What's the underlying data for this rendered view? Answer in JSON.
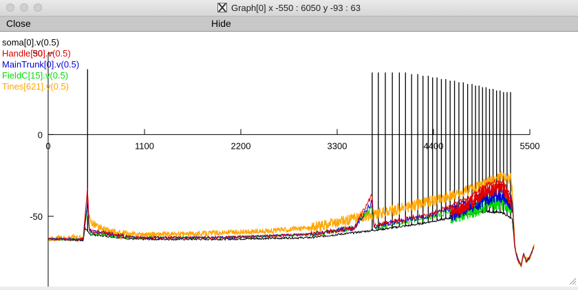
{
  "window": {
    "title": "Graph[0]  x -550 : 6050  y -93 : 63"
  },
  "menu": {
    "close_label": "Close",
    "hide_label": "Hide"
  },
  "legend": [
    {
      "label": "soma[0].v(0.5)",
      "color": "#000000"
    },
    {
      "label": "Handle[30].v(0.5)",
      "color": "#e00000"
    },
    {
      "label": "MainTrunk[0].v(0.5)",
      "color": "#0000dd"
    },
    {
      "label": "FieldC[15].v(0.5)",
      "color": "#00dd00"
    },
    {
      "label": "Tines[621].v(0.5)",
      "color": "#ffa500"
    }
  ],
  "chart_data": {
    "type": "line",
    "xlim": [
      -550,
      6050
    ],
    "ylim": [
      -93,
      63
    ],
    "x_ticks": [
      0,
      1100,
      2200,
      3300,
      4400,
      5500
    ],
    "x_tick_labels": [
      "0",
      "1100",
      "2200",
      "3300",
      "4400",
      "5500"
    ],
    "y_ticks": [
      0,
      -50
    ],
    "y_tick_labels": [
      "0",
      "-50"
    ],
    "y_top_tick_label": "50",
    "series": [
      {
        "name": "soma[0].v(0.5)",
        "color": "#000000",
        "baseline": [
          [
            0,
            -64
          ],
          [
            300,
            -64.5
          ],
          [
            400,
            -65
          ],
          [
            420,
            -57
          ],
          [
            470,
            -61
          ],
          [
            1000,
            -64
          ],
          [
            2000,
            -64
          ],
          [
            3000,
            -63
          ],
          [
            3500,
            -60
          ],
          [
            3800,
            -58
          ],
          [
            4200,
            -55
          ],
          [
            4600,
            -51
          ],
          [
            5000,
            -47
          ],
          [
            5200,
            -48
          ],
          [
            5300,
            -52
          ],
          [
            5330,
            -70
          ],
          [
            5360,
            -75
          ],
          [
            5400,
            -80
          ],
          [
            5430,
            -73
          ],
          [
            5460,
            -78
          ],
          [
            5500,
            -75
          ],
          [
            5550,
            -68
          ]
        ],
        "spikes": [
          [
            450,
            40
          ],
          [
            3700,
            38
          ],
          [
            3770,
            38
          ],
          [
            3850,
            38
          ],
          [
            3930,
            38
          ],
          [
            4010,
            38
          ],
          [
            4080,
            38
          ],
          [
            4150,
            37
          ],
          [
            4220,
            37
          ],
          [
            4280,
            36
          ],
          [
            4340,
            36
          ],
          [
            4390,
            35
          ],
          [
            4440,
            35
          ],
          [
            4490,
            34
          ],
          [
            4540,
            34
          ],
          [
            4590,
            33
          ],
          [
            4640,
            33
          ],
          [
            4690,
            32
          ],
          [
            4740,
            32
          ],
          [
            4790,
            31
          ],
          [
            4840,
            31
          ],
          [
            4880,
            30
          ],
          [
            4920,
            30
          ],
          [
            4960,
            29
          ],
          [
            5000,
            29
          ],
          [
            5040,
            28
          ],
          [
            5080,
            28
          ],
          [
            5120,
            27
          ],
          [
            5160,
            27
          ],
          [
            5200,
            26
          ],
          [
            5240,
            26
          ],
          [
            5280,
            26
          ]
        ]
      },
      {
        "name": "Handle[30].v(0.5)",
        "color": "#e00000",
        "points": [
          [
            0,
            -64
          ],
          [
            400,
            -64
          ],
          [
            450,
            -32
          ],
          [
            470,
            -59
          ],
          [
            1000,
            -63
          ],
          [
            2000,
            -63
          ],
          [
            3000,
            -61
          ],
          [
            3500,
            -57
          ],
          [
            3700,
            -37
          ],
          [
            3720,
            -55
          ],
          [
            4000,
            -53
          ],
          [
            4400,
            -48
          ],
          [
            4800,
            -39
          ],
          [
            5000,
            -31
          ],
          [
            5150,
            -28
          ],
          [
            5200,
            -29
          ],
          [
            5300,
            -40
          ],
          [
            5330,
            -70
          ],
          [
            5360,
            -76
          ],
          [
            5400,
            -80
          ],
          [
            5430,
            -73
          ],
          [
            5460,
            -78
          ],
          [
            5500,
            -75
          ],
          [
            5550,
            -68
          ]
        ]
      },
      {
        "name": "MainTrunk[0].v(0.5)",
        "color": "#0000dd",
        "points": [
          [
            0,
            -64
          ],
          [
            400,
            -64
          ],
          [
            450,
            -41
          ],
          [
            470,
            -59
          ],
          [
            1000,
            -63
          ],
          [
            2000,
            -63
          ],
          [
            3000,
            -61
          ],
          [
            3500,
            -57
          ],
          [
            3700,
            -41
          ],
          [
            3720,
            -56
          ],
          [
            4000,
            -53
          ],
          [
            4400,
            -49
          ],
          [
            4800,
            -41
          ],
          [
            5000,
            -36
          ],
          [
            5150,
            -33
          ],
          [
            5250,
            -37
          ],
          [
            5300,
            -40
          ],
          [
            5330,
            -70
          ],
          [
            5360,
            -76
          ],
          [
            5400,
            -80
          ],
          [
            5430,
            -73
          ],
          [
            5460,
            -78
          ],
          [
            5500,
            -75
          ],
          [
            5550,
            -68
          ]
        ]
      },
      {
        "name": "FieldC[15].v(0.5)",
        "color": "#00dd00",
        "points": [
          [
            0,
            -64
          ],
          [
            400,
            -64
          ],
          [
            450,
            -44
          ],
          [
            470,
            -60
          ],
          [
            1000,
            -63
          ],
          [
            2000,
            -63
          ],
          [
            3000,
            -61
          ],
          [
            3500,
            -57
          ],
          [
            3700,
            -44
          ],
          [
            3720,
            -57
          ],
          [
            4000,
            -54
          ],
          [
            4400,
            -50
          ],
          [
            4800,
            -44
          ],
          [
            5000,
            -40
          ],
          [
            5150,
            -38
          ],
          [
            5250,
            -40
          ],
          [
            5300,
            -42
          ],
          [
            5330,
            -70
          ],
          [
            5360,
            -76
          ],
          [
            5400,
            -80
          ],
          [
            5430,
            -73
          ],
          [
            5460,
            -78
          ],
          [
            5500,
            -75
          ],
          [
            5550,
            -68
          ]
        ]
      },
      {
        "name": "Tines[621].v(0.5)",
        "color": "#ffa500",
        "points": [
          [
            0,
            -64
          ],
          [
            200,
            -63
          ],
          [
            400,
            -63
          ],
          [
            430,
            -45
          ],
          [
            470,
            -52
          ],
          [
            600,
            -58
          ],
          [
            800,
            -61
          ],
          [
            1000,
            -61
          ],
          [
            1500,
            -61
          ],
          [
            2000,
            -60
          ],
          [
            2500,
            -59
          ],
          [
            3000,
            -57
          ],
          [
            3300,
            -54
          ],
          [
            3600,
            -50
          ],
          [
            3900,
            -47
          ],
          [
            4200,
            -43
          ],
          [
            4500,
            -39
          ],
          [
            4800,
            -34
          ],
          [
            5000,
            -30
          ],
          [
            5200,
            -25
          ],
          [
            5280,
            -27
          ],
          [
            5300,
            -35
          ],
          [
            5330,
            -68
          ],
          [
            5360,
            -77
          ],
          [
            5400,
            -80
          ],
          [
            5430,
            -73
          ],
          [
            5460,
            -77
          ],
          [
            5500,
            -75
          ],
          [
            5550,
            -68
          ]
        ]
      }
    ]
  }
}
